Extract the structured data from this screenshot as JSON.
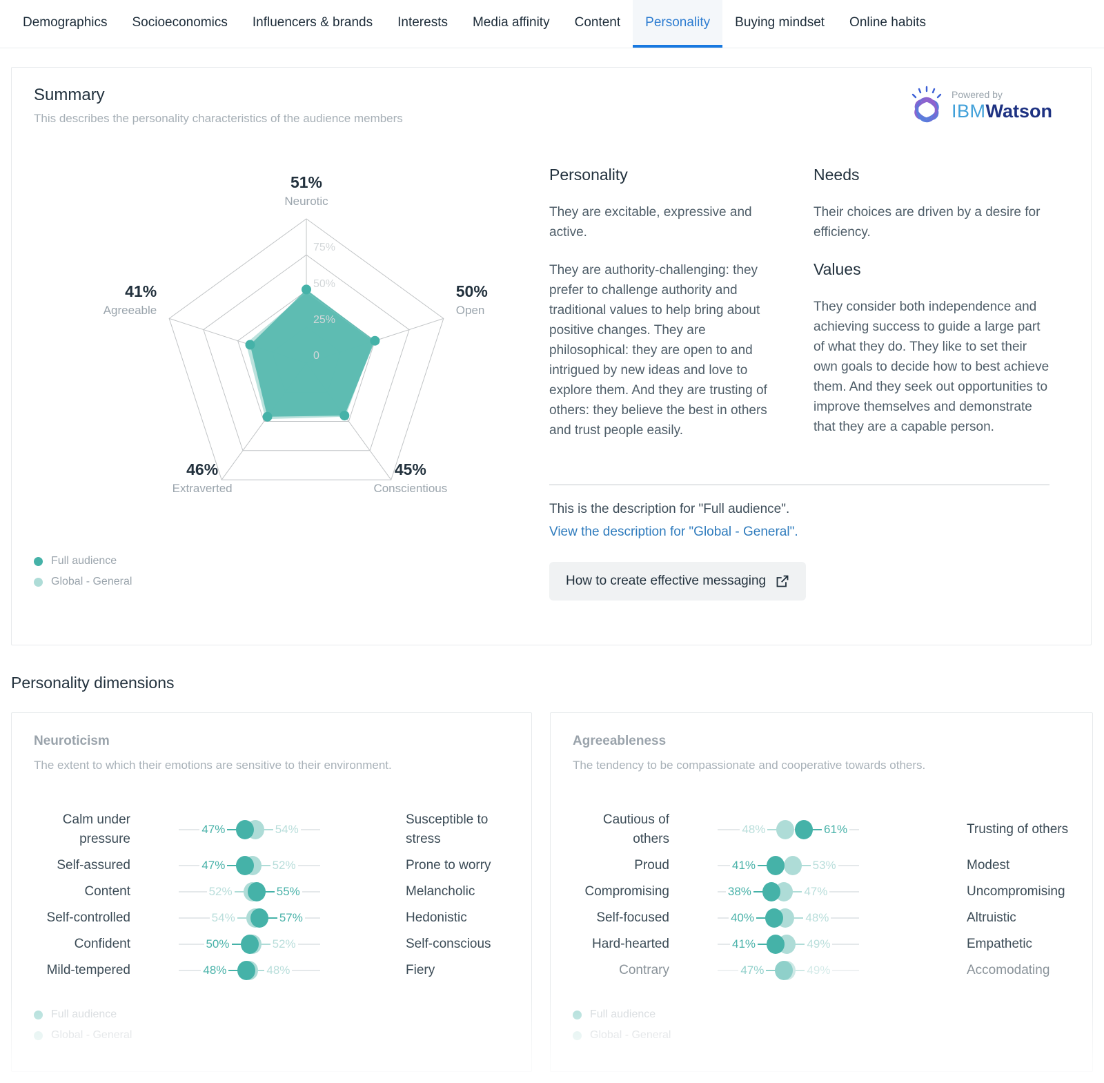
{
  "tabs": [
    {
      "label": "Demographics",
      "active": false
    },
    {
      "label": "Socioeconomics",
      "active": false
    },
    {
      "label": "Influencers & brands",
      "active": false
    },
    {
      "label": "Interests",
      "active": false
    },
    {
      "label": "Media affinity",
      "active": false
    },
    {
      "label": "Content",
      "active": false
    },
    {
      "label": "Personality",
      "active": true
    },
    {
      "label": "Buying mindset",
      "active": false
    },
    {
      "label": "Online habits",
      "active": false
    }
  ],
  "summary": {
    "title": "Summary",
    "subtitle": "This describes the personality characteristics of the audience members",
    "watson": {
      "powered_by": "Powered by",
      "ibm": "IBM",
      "watson": "Watson"
    },
    "legend": [
      {
        "label": "Full audience",
        "series": "full"
      },
      {
        "label": "Global - General",
        "series": "global"
      }
    ],
    "personality_heading": "Personality",
    "personality_paragraphs": [
      "They are excitable, expressive and active.",
      "They are authority-challenging: they prefer to challenge authority and traditional values to help bring about positive changes. They are philosophical: they are open to and intrigued by new ideas and love to explore them. And they are trusting of others: they believe the best in others and trust people easily."
    ],
    "needs_heading": "Needs",
    "needs_text": "Their choices are driven by a desire for efficiency.",
    "values_heading": "Values",
    "values_text": "They consider both independence and achieving success to guide a large part of what they do. They like to set their own goals to decide how to best achieve them. And they seek out opportunities to improve themselves and demonstrate that they are a capable person.",
    "description_line": "This is the description for \"Full audience\".",
    "description_link": "View the description for \"Global - General\".",
    "messaging_button": "How to create effective messaging"
  },
  "chart_data": {
    "type": "radar",
    "title": "Personality summary radar",
    "axes": [
      "Neurotic",
      "Open",
      "Conscientious",
      "Extraverted",
      "Agreeable"
    ],
    "axis_values_pct": [
      51,
      50,
      45,
      46,
      41
    ],
    "rings_pct": [
      0,
      25,
      50,
      75,
      100
    ],
    "tick_labels": [
      "75%",
      "50%",
      "25%",
      "0"
    ],
    "series": [
      {
        "name": "Full audience",
        "values": [
          51,
          50,
          45,
          46,
          41
        ],
        "color": "#45b2a8"
      },
      {
        "name": "Global - General",
        "values": [
          49,
          49,
          46,
          48,
          44
        ],
        "color": "#aedcd7"
      }
    ],
    "legend_position": "bottom-left"
  },
  "dimensions": {
    "heading": "Personality dimensions",
    "cards": [
      {
        "title": "Neuroticism",
        "subtitle": "The extent to which their emotions are sensitive to their environment.",
        "rows": [
          {
            "left": "Calm under pressure",
            "right": "Susceptible to stress",
            "full": 47,
            "global": 54,
            "faded": false
          },
          {
            "left": "Self-assured",
            "right": "Prone to worry",
            "full": 47,
            "global": 52,
            "faded": false
          },
          {
            "left": "Content",
            "right": "Melancholic",
            "full": 55,
            "global": 52,
            "faded": false
          },
          {
            "left": "Self-controlled",
            "right": "Hedonistic",
            "full": 57,
            "global": 54,
            "faded": false
          },
          {
            "left": "Confident",
            "right": "Self-conscious",
            "full": 50,
            "global": 52,
            "faded": false
          },
          {
            "left": "Mild-tempered",
            "right": "Fiery",
            "full": 48,
            "global": 48,
            "faded": false
          }
        ],
        "legend": [
          {
            "label": "Full audience",
            "series": "full"
          },
          {
            "label": "Global - General",
            "series": "global"
          }
        ]
      },
      {
        "title": "Agreeableness",
        "subtitle": "The tendency to be compassionate and cooperative towards others.",
        "rows": [
          {
            "left": "Cautious of others",
            "right": "Trusting of others",
            "full": 61,
            "global": 48,
            "faded": false
          },
          {
            "left": "Proud",
            "right": "Modest",
            "full": 41,
            "global": 53,
            "faded": false
          },
          {
            "left": "Compromising",
            "right": "Uncompromising",
            "full": 38,
            "global": 47,
            "faded": false
          },
          {
            "left": "Self-focused",
            "right": "Altruistic",
            "full": 40,
            "global": 48,
            "faded": false
          },
          {
            "left": "Hard-hearted",
            "right": "Empathetic",
            "full": 41,
            "global": 49,
            "faded": false
          },
          {
            "left": "Contrary",
            "right": "Accomodating",
            "full": 47,
            "global": 49,
            "faded": true
          }
        ],
        "legend": [
          {
            "label": "Full audience",
            "series": "full"
          },
          {
            "label": "Global - General",
            "series": "global"
          }
        ]
      }
    ]
  },
  "colors": {
    "teal": "#45b2a8",
    "teal_light": "#aedcd7",
    "link_blue": "#2e7bbd",
    "tab_blue": "#2e7dd1",
    "tab_underline": "#1778e0"
  }
}
